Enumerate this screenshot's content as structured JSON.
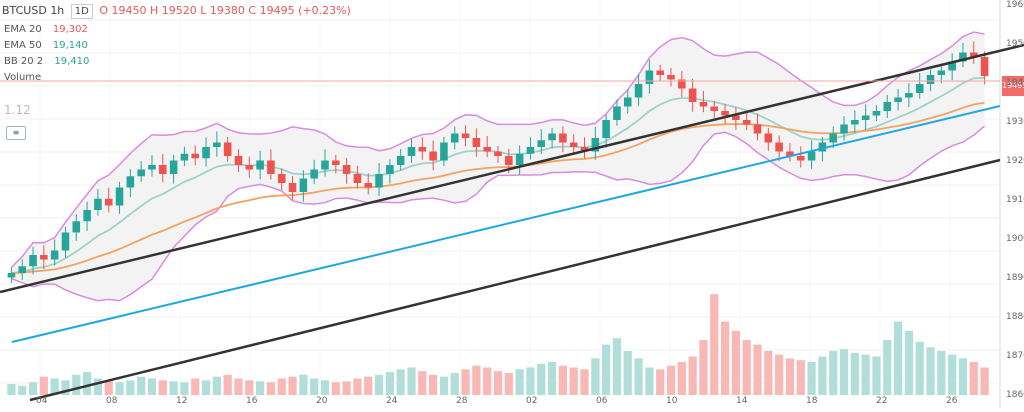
{
  "header": {
    "symbol": "BTCUSD",
    "interval": "1h",
    "timeframe_box": "1D",
    "ohlc": [
      "O 19450",
      "H 19520",
      "L 19380",
      "C 19495 (+0.23%)"
    ],
    "sub_label": "Volume"
  },
  "indicators": [
    {
      "label": "EMA 20",
      "value": "19,302",
      "color": "#2aa198"
    },
    {
      "label": "EMA 50",
      "value": "19,140",
      "color": "#2aa198"
    },
    {
      "label": "BB 20 2",
      "value": "19,410",
      "color": "#e05a5a"
    }
  ],
  "side_small": "1.12",
  "price_axis": [
    "19600",
    "19500",
    "19400",
    "19300",
    "19200",
    "19100",
    "19000",
    "18900",
    "18800",
    "18700",
    "18600"
  ],
  "time_axis": [
    "04",
    "08",
    "12",
    "16",
    "20",
    "24",
    "28",
    "02",
    "06",
    "10",
    "14",
    "18",
    "22",
    "26"
  ],
  "last_price": "19495",
  "colors": {
    "up": "#26a69a",
    "down": "#ef5350",
    "ema_fast": "#9fd3c7",
    "ema_slow": "#f4a261",
    "bb": "#d98be0",
    "channel": "#333333",
    "mid": "#1ea7e1"
  },
  "chart_data": {
    "type": "candlestick",
    "title": "BTCUSD 1h",
    "series": [
      {
        "name": "close",
        "values": [
          18620,
          18650,
          18700,
          18680,
          18720,
          18800,
          18850,
          18900,
          18950,
          18920,
          19000,
          19050,
          19080,
          19100,
          19060,
          19120,
          19150,
          19130,
          19180,
          19200,
          19140,
          19100,
          19080,
          19120,
          19060,
          19020,
          18980,
          19040,
          19080,
          19120,
          19100,
          19060,
          19020,
          19000,
          19060,
          19100,
          19140,
          19180,
          19160,
          19120,
          19200,
          19240,
          19220,
          19180,
          19160,
          19140,
          19100,
          19150,
          19180,
          19210,
          19240,
          19200,
          19180,
          19160,
          19220,
          19300,
          19360,
          19400,
          19460,
          19520,
          19500,
          19480,
          19440,
          19380,
          19360,
          19340,
          19320,
          19300,
          19280,
          19240,
          19200,
          19160,
          19140,
          19120,
          19160,
          19200,
          19240,
          19280,
          19300,
          19320,
          19340,
          19380,
          19400,
          19420,
          19460,
          19500,
          19520,
          19560,
          19600,
          19580,
          19495
        ]
      },
      {
        "name": "volume",
        "values": [
          12,
          10,
          14,
          20,
          18,
          16,
          22,
          25,
          18,
          15,
          14,
          16,
          20,
          18,
          16,
          15,
          14,
          18,
          16,
          20,
          22,
          18,
          16,
          15,
          14,
          18,
          20,
          22,
          18,
          16,
          14,
          15,
          18,
          20,
          22,
          25,
          28,
          30,
          26,
          22,
          20,
          24,
          28,
          32,
          30,
          26,
          24,
          28,
          30,
          34,
          36,
          32,
          30,
          28,
          40,
          55,
          62,
          48,
          40,
          30,
          28,
          32,
          36,
          42,
          60,
          110,
          80,
          70,
          60,
          55,
          48,
          44,
          40,
          38,
          36,
          42,
          48,
          50,
          46,
          44,
          42,
          60,
          80,
          70,
          58,
          52,
          48,
          44,
          40,
          36,
          30
        ]
      }
    ]
  }
}
